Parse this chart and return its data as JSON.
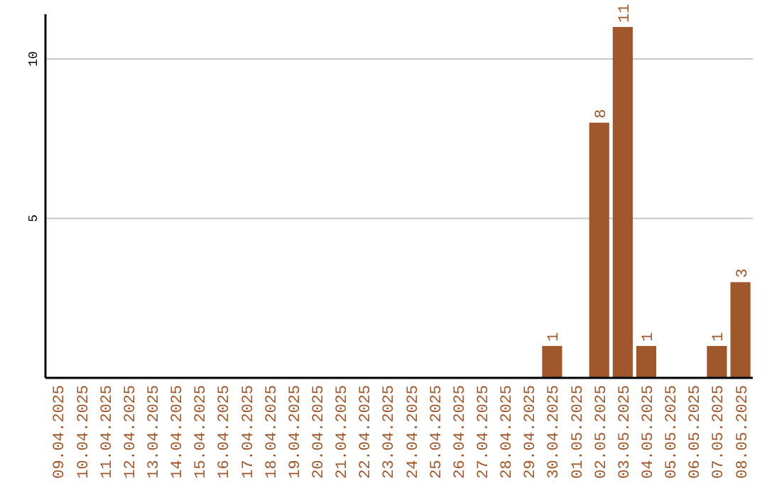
{
  "chart_data": {
    "type": "bar",
    "categories": [
      "09.04.2025",
      "10.04.2025",
      "11.04.2025",
      "12.04.2025",
      "13.04.2025",
      "14.04.2025",
      "15.04.2025",
      "16.04.2025",
      "17.04.2025",
      "18.04.2025",
      "19.04.2025",
      "20.04.2025",
      "21.04.2025",
      "22.04.2025",
      "23.04.2025",
      "24.04.2025",
      "25.04.2025",
      "26.04.2025",
      "27.04.2025",
      "28.04.2025",
      "29.04.2025",
      "30.04.2025",
      "01.05.2025",
      "02.05.2025",
      "03.05.2025",
      "04.05.2025",
      "05.05.2025",
      "06.05.2025",
      "07.05.2025",
      "08.05.2025"
    ],
    "values": [
      0,
      0,
      0,
      0,
      0,
      0,
      0,
      0,
      0,
      0,
      0,
      0,
      0,
      0,
      0,
      0,
      0,
      0,
      0,
      0,
      0,
      1,
      0,
      8,
      11,
      1,
      0,
      0,
      1,
      3
    ],
    "value_labels": [
      null,
      null,
      null,
      null,
      null,
      null,
      null,
      null,
      null,
      null,
      null,
      null,
      null,
      null,
      null,
      null,
      null,
      null,
      null,
      null,
      null,
      "1",
      null,
      "8",
      "11",
      "1",
      null,
      null,
      "1",
      "3"
    ],
    "color": "#a0572b",
    "ylim": [
      0,
      11.4
    ],
    "yticks": [
      5,
      10
    ],
    "grid": "y"
  }
}
